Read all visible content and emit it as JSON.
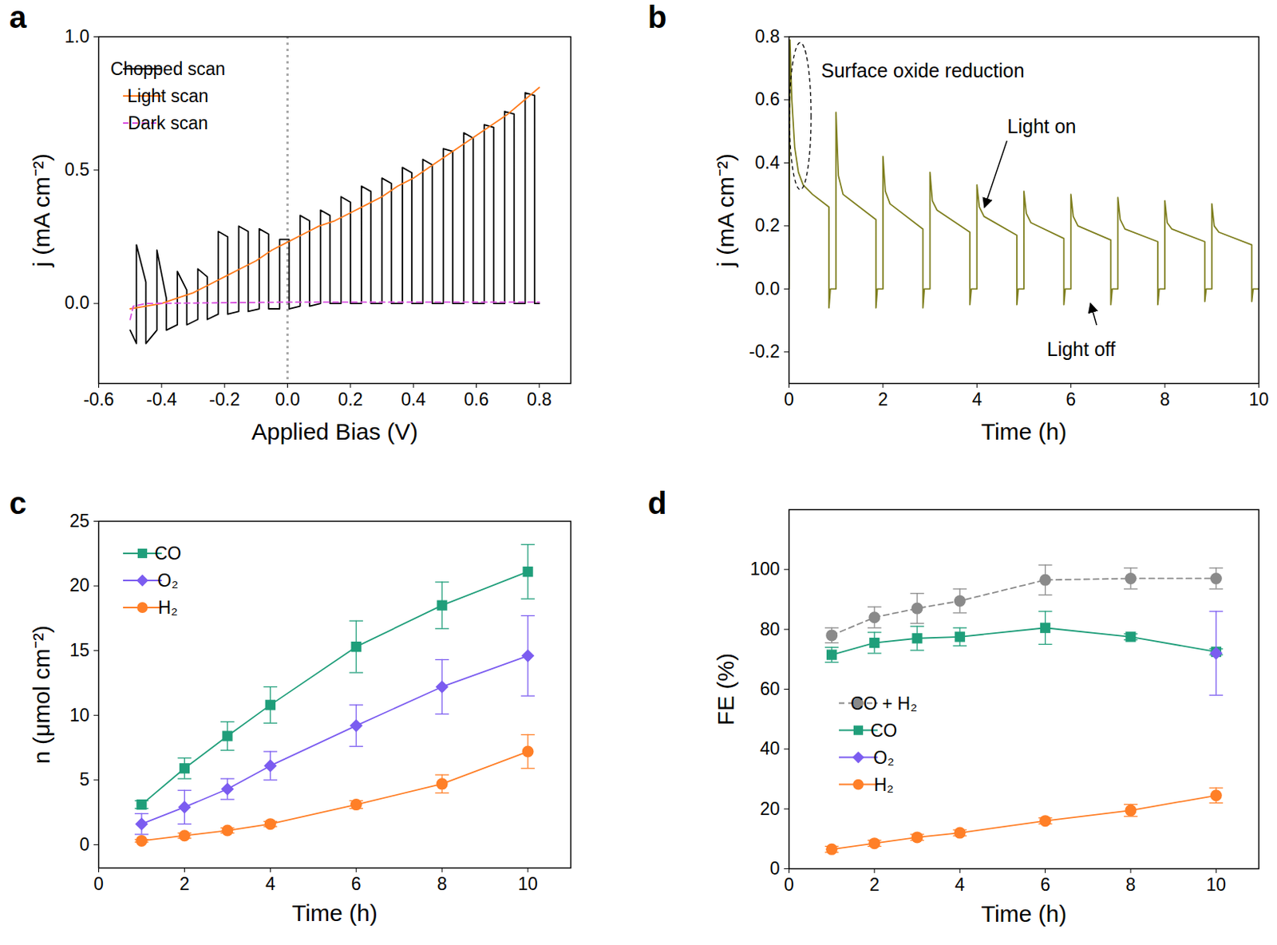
{
  "chart_data": [
    {
      "panel": "a",
      "type": "line",
      "xlabel": "Applied Bias (V)",
      "ylabel": "j (mA cm⁻²)",
      "xlim": [
        -0.6,
        0.9
      ],
      "ylim": [
        -0.3,
        1.0
      ],
      "xticks": [
        -0.6,
        -0.4,
        -0.2,
        {
          "value": 0,
          "label": "0.0"
        },
        0.2,
        0.4,
        0.6,
        0.8
      ],
      "yticks": [
        {
          "value": 0,
          "label": "0.0"
        },
        0.5,
        {
          "value": 1,
          "label": "1.0"
        }
      ],
      "legend": "top-left",
      "vlines": [
        0
      ],
      "series": [
        {
          "name": "Chopped scan",
          "color": "#000000",
          "line_style": "solid",
          "x": [
            -0.5,
            -0.48,
            -0.48,
            -0.45,
            -0.45,
            -0.415,
            -0.415,
            -0.385,
            -0.385,
            -0.35,
            -0.35,
            -0.32,
            -0.32,
            -0.285,
            -0.285,
            -0.255,
            -0.255,
            -0.22,
            -0.22,
            -0.19,
            -0.19,
            -0.155,
            -0.155,
            -0.125,
            -0.125,
            -0.09,
            -0.09,
            -0.06,
            -0.06,
            -0.025,
            -0.025,
            0.005,
            0.005,
            0.04,
            0.04,
            0.07,
            0.07,
            0.105,
            0.105,
            0.135,
            0.135,
            0.17,
            0.17,
            0.2,
            0.2,
            0.235,
            0.235,
            0.265,
            0.265,
            0.3,
            0.3,
            0.33,
            0.33,
            0.365,
            0.365,
            0.395,
            0.395,
            0.43,
            0.43,
            0.46,
            0.46,
            0.495,
            0.495,
            0.525,
            0.525,
            0.56,
            0.56,
            0.59,
            0.59,
            0.625,
            0.625,
            0.655,
            0.655,
            0.69,
            0.69,
            0.72,
            0.72,
            0.755,
            0.755,
            0.785,
            0.785,
            0.8
          ],
          "values": [
            -0.1,
            -0.15,
            0.22,
            0.08,
            -0.15,
            -0.1,
            0.2,
            0.02,
            -0.1,
            -0.08,
            0.12,
            0.05,
            -0.08,
            -0.06,
            0.13,
            0.1,
            -0.06,
            -0.04,
            0.27,
            0.25,
            -0.04,
            -0.03,
            0.29,
            0.27,
            -0.03,
            -0.02,
            0.28,
            0.26,
            -0.02,
            -0.02,
            0.24,
            0.24,
            -0.02,
            -0.01,
            0.33,
            0.31,
            -0.01,
            0,
            0.35,
            0.33,
            0,
            0,
            0.4,
            0.38,
            0,
            0,
            0.44,
            0.42,
            0,
            0,
            0.47,
            0.45,
            0,
            0,
            0.51,
            0.49,
            0,
            0,
            0.54,
            0.52,
            0,
            0,
            0.58,
            0.57,
            0,
            0,
            0.64,
            0.62,
            0,
            0,
            0.67,
            0.66,
            0,
            0,
            0.72,
            0.71,
            0,
            0,
            0.79,
            0.78,
            0,
            0
          ]
        },
        {
          "name": "Light scan",
          "color": "#ff7a1a",
          "line_style": "solid",
          "x": [
            -0.5,
            -0.45,
            -0.4,
            -0.35,
            -0.3,
            -0.25,
            -0.2,
            -0.15,
            -0.1,
            -0.05,
            0,
            0.05,
            0.1,
            0.15,
            0.2,
            0.25,
            0.3,
            0.35,
            0.4,
            0.45,
            0.5,
            0.55,
            0.6,
            0.65,
            0.7,
            0.75,
            0.8
          ],
          "values": [
            -0.02,
            -0.01,
            0,
            0.02,
            0.04,
            0.07,
            0.1,
            0.13,
            0.16,
            0.2,
            0.23,
            0.26,
            0.29,
            0.31,
            0.34,
            0.37,
            0.4,
            0.44,
            0.47,
            0.51,
            0.55,
            0.59,
            0.63,
            0.67,
            0.71,
            0.76,
            0.81
          ]
        },
        {
          "name": "Dark scan",
          "color": "#d84ee0",
          "line_style": "dashed",
          "x": [
            -0.5,
            -0.49,
            -0.45,
            0,
            0.8
          ],
          "values": [
            -0.06,
            -0.01,
            0,
            0.005,
            0.005
          ]
        }
      ]
    },
    {
      "panel": "b",
      "type": "line",
      "xlabel": "Time (h)",
      "ylabel": "j (mA cm⁻²)",
      "xlim": [
        0,
        10
      ],
      "ylim": [
        -0.3,
        0.8
      ],
      "xticks": [
        0,
        2,
        4,
        6,
        8,
        10
      ],
      "yticks": [
        -0.2,
        {
          "value": 0,
          "label": "0.0"
        },
        0.2,
        0.4,
        0.6,
        0.8
      ],
      "annotations": [
        "Surface oxide reduction",
        "Light on",
        "Light off"
      ],
      "series": [
        {
          "color": "#7f7f1f",
          "line_style": "solid",
          "x": [
            0,
            0.02,
            0.06,
            0.12,
            0.2,
            0.3,
            0.5,
            0.85,
            0.85,
            0.88,
            1,
            1,
            1.05,
            1.15,
            1.85,
            1.85,
            1.88,
            2,
            2,
            2.05,
            2.15,
            2.85,
            2.85,
            2.88,
            3,
            3,
            3.05,
            3.15,
            3.85,
            3.85,
            3.88,
            4,
            4,
            4.05,
            4.15,
            4.85,
            4.85,
            4.88,
            5,
            5,
            5.05,
            5.15,
            5.85,
            5.85,
            5.88,
            6,
            6,
            6.05,
            6.15,
            6.85,
            6.85,
            6.88,
            7,
            7,
            7.05,
            7.15,
            7.85,
            7.85,
            7.88,
            8,
            8,
            8.05,
            8.15,
            8.85,
            8.85,
            8.88,
            9,
            9,
            9.05,
            9.15,
            9.85,
            9.85,
            9.88,
            10
          ],
          "values": [
            0,
            0.79,
            0.6,
            0.45,
            0.37,
            0.33,
            0.3,
            0.26,
            -0.06,
            0,
            0,
            0.56,
            0.36,
            0.3,
            0.22,
            -0.06,
            0,
            0,
            0.42,
            0.31,
            0.27,
            0.19,
            -0.06,
            0,
            0,
            0.37,
            0.28,
            0.25,
            0.18,
            -0.05,
            0,
            0,
            0.33,
            0.26,
            0.23,
            0.17,
            -0.05,
            0,
            0,
            0.31,
            0.24,
            0.21,
            0.16,
            -0.05,
            0,
            0,
            0.3,
            0.23,
            0.2,
            0.155,
            -0.05,
            0,
            0,
            0.29,
            0.22,
            0.19,
            0.15,
            -0.05,
            0,
            0,
            0.28,
            0.21,
            0.19,
            0.15,
            -0.04,
            0,
            0,
            0.27,
            0.2,
            0.18,
            0.14,
            -0.04,
            0,
            0
          ]
        }
      ]
    },
    {
      "panel": "c",
      "type": "line",
      "xlabel": "Time (h)",
      "ylabel": "n (μmol cm⁻²)",
      "xlim": [
        0,
        11
      ],
      "ylim": [
        -1.8,
        25
      ],
      "xticks": [
        0,
        2,
        4,
        6,
        8,
        10
      ],
      "yticks": [
        0,
        5,
        10,
        15,
        20,
        25
      ],
      "legend": "top-left",
      "x": [
        1,
        2,
        3,
        4,
        6,
        8,
        10
      ],
      "series": [
        {
          "name": "CO",
          "color": "#1f9e7a",
          "marker": "square",
          "line_style": "solid",
          "values": [
            3.1,
            5.9,
            8.4,
            10.8,
            15.3,
            18.5,
            21.1
          ],
          "errors": [
            0.3,
            0.8,
            1.1,
            1.4,
            2.0,
            1.8,
            2.1
          ]
        },
        {
          "name": "O₂",
          "color": "#7b5cf0",
          "marker": "diamond",
          "line_style": "solid",
          "values": [
            1.6,
            2.9,
            4.3,
            6.1,
            9.2,
            12.2,
            14.6
          ],
          "errors": [
            0.8,
            1.3,
            0.8,
            1.1,
            1.6,
            2.1,
            3.1
          ]
        },
        {
          "name": "H₂",
          "color": "#ff7f27",
          "marker": "circle",
          "line_style": "solid",
          "values": [
            0.3,
            0.7,
            1.1,
            1.6,
            3.1,
            4.7,
            7.2
          ],
          "errors": [
            0.1,
            0.2,
            0.2,
            0.2,
            0.3,
            0.7,
            1.3
          ]
        }
      ]
    },
    {
      "panel": "d",
      "type": "line",
      "xlabel": "Time (h)",
      "ylabel": "FE (%)",
      "xlim": [
        0,
        11
      ],
      "ylim": [
        0,
        120
      ],
      "xticks": [
        0,
        2,
        4,
        6,
        8,
        10
      ],
      "yticks": [
        0,
        20,
        40,
        60,
        80,
        100
      ],
      "legend": "left",
      "x": [
        1,
        2,
        3,
        4,
        6,
        8,
        10
      ],
      "series": [
        {
          "name": "CO + H₂",
          "color": "#8a8a8a",
          "marker": "circle",
          "line_style": "dashed",
          "values": [
            78,
            84,
            87,
            89.5,
            96.5,
            97,
            97
          ],
          "errors": [
            2.5,
            3.5,
            5,
            4,
            5,
            3.5,
            3.5
          ]
        },
        {
          "name": "CO",
          "color": "#1f9e7a",
          "marker": "square",
          "line_style": "solid",
          "values": [
            71.5,
            75.5,
            77,
            77.5,
            80.5,
            77.5,
            72.5
          ],
          "errors": [
            2.5,
            3.5,
            4,
            3,
            5.5,
            1,
            1
          ]
        },
        {
          "name": "O₂",
          "color": "#7b5cf0",
          "marker": "diamond",
          "line_style": "solid",
          "values": [
            null,
            null,
            null,
            null,
            null,
            null,
            72
          ],
          "errors": [
            null,
            null,
            null,
            null,
            null,
            null,
            14
          ]
        },
        {
          "name": "H₂",
          "color": "#ff7f27",
          "marker": "circle",
          "line_style": "solid",
          "values": [
            6.5,
            8.5,
            10.5,
            12,
            16,
            19.5,
            24.5
          ],
          "errors": [
            1,
            1,
            1,
            1,
            1,
            2,
            2.5
          ]
        }
      ]
    }
  ]
}
